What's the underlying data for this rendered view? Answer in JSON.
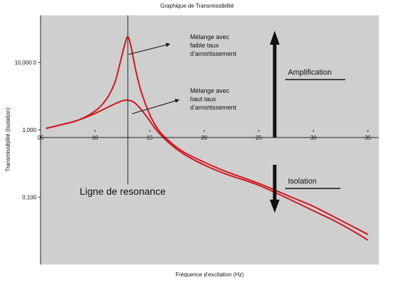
{
  "chart_data": {
    "type": "line",
    "title": "Graphique de Transmissibilité",
    "xlabel": "Fréquence d’excitation (Hz)",
    "ylabel": "Transmissibilité (Isolation)",
    "y_scale": "log",
    "xlim": [
      5,
      36
    ],
    "ylim": [
      0.01,
      50
    ],
    "x_ticks": [
      "05",
      "10",
      "15",
      "20",
      "25",
      "30",
      "35"
    ],
    "x_tick_values": [
      5,
      10,
      15,
      20,
      25,
      30,
      35
    ],
    "y_ticks": [
      "0,100",
      "1,000",
      "10,000 0"
    ],
    "y_tick_values": [
      0.1,
      1,
      10
    ],
    "grid": false,
    "background": "#cfcfcf",
    "line_color": "#d0161e",
    "series": [
      {
        "x": [
          5.5,
          7,
          8.5,
          10,
          11,
          11.8,
          12.3,
          12.7,
          13,
          13.3,
          13.7,
          14.2,
          15,
          15.7,
          16.5,
          18,
          20,
          22,
          25,
          28,
          30,
          32,
          34,
          35
        ],
        "y": [
          1.05,
          1.2,
          1.4,
          1.9,
          2.8,
          5.0,
          10.0,
          18.0,
          24.0,
          17.0,
          8.0,
          3.8,
          1.7,
          1.05,
          0.75,
          0.48,
          0.33,
          0.24,
          0.16,
          0.1,
          0.073,
          0.05,
          0.034,
          0.028
        ]
      },
      {
        "x": [
          5.5,
          7,
          8.5,
          10,
          11,
          12,
          12.5,
          13,
          13.5,
          14,
          14.7,
          15.5,
          16.5,
          18,
          20,
          22,
          25,
          28,
          30,
          32,
          34,
          35
        ],
        "y": [
          1.05,
          1.2,
          1.4,
          1.75,
          2.1,
          2.5,
          2.7,
          2.75,
          2.6,
          2.2,
          1.6,
          1.05,
          0.7,
          0.45,
          0.3,
          0.22,
          0.15,
          0.09,
          0.063,
          0.044,
          0.029,
          0.023
        ]
      }
    ],
    "resonance_line": {
      "x": 13,
      "label": "Ligne de resonance"
    },
    "annotations": {
      "low_damping": [
        "Mélange avec",
        "faible taux",
        "d’amortissement"
      ],
      "high_damping": [
        "Mélange avec",
        "haut taux",
        "d’amortissement"
      ],
      "amplification": "Amplification",
      "isolation": "Isolation"
    }
  }
}
